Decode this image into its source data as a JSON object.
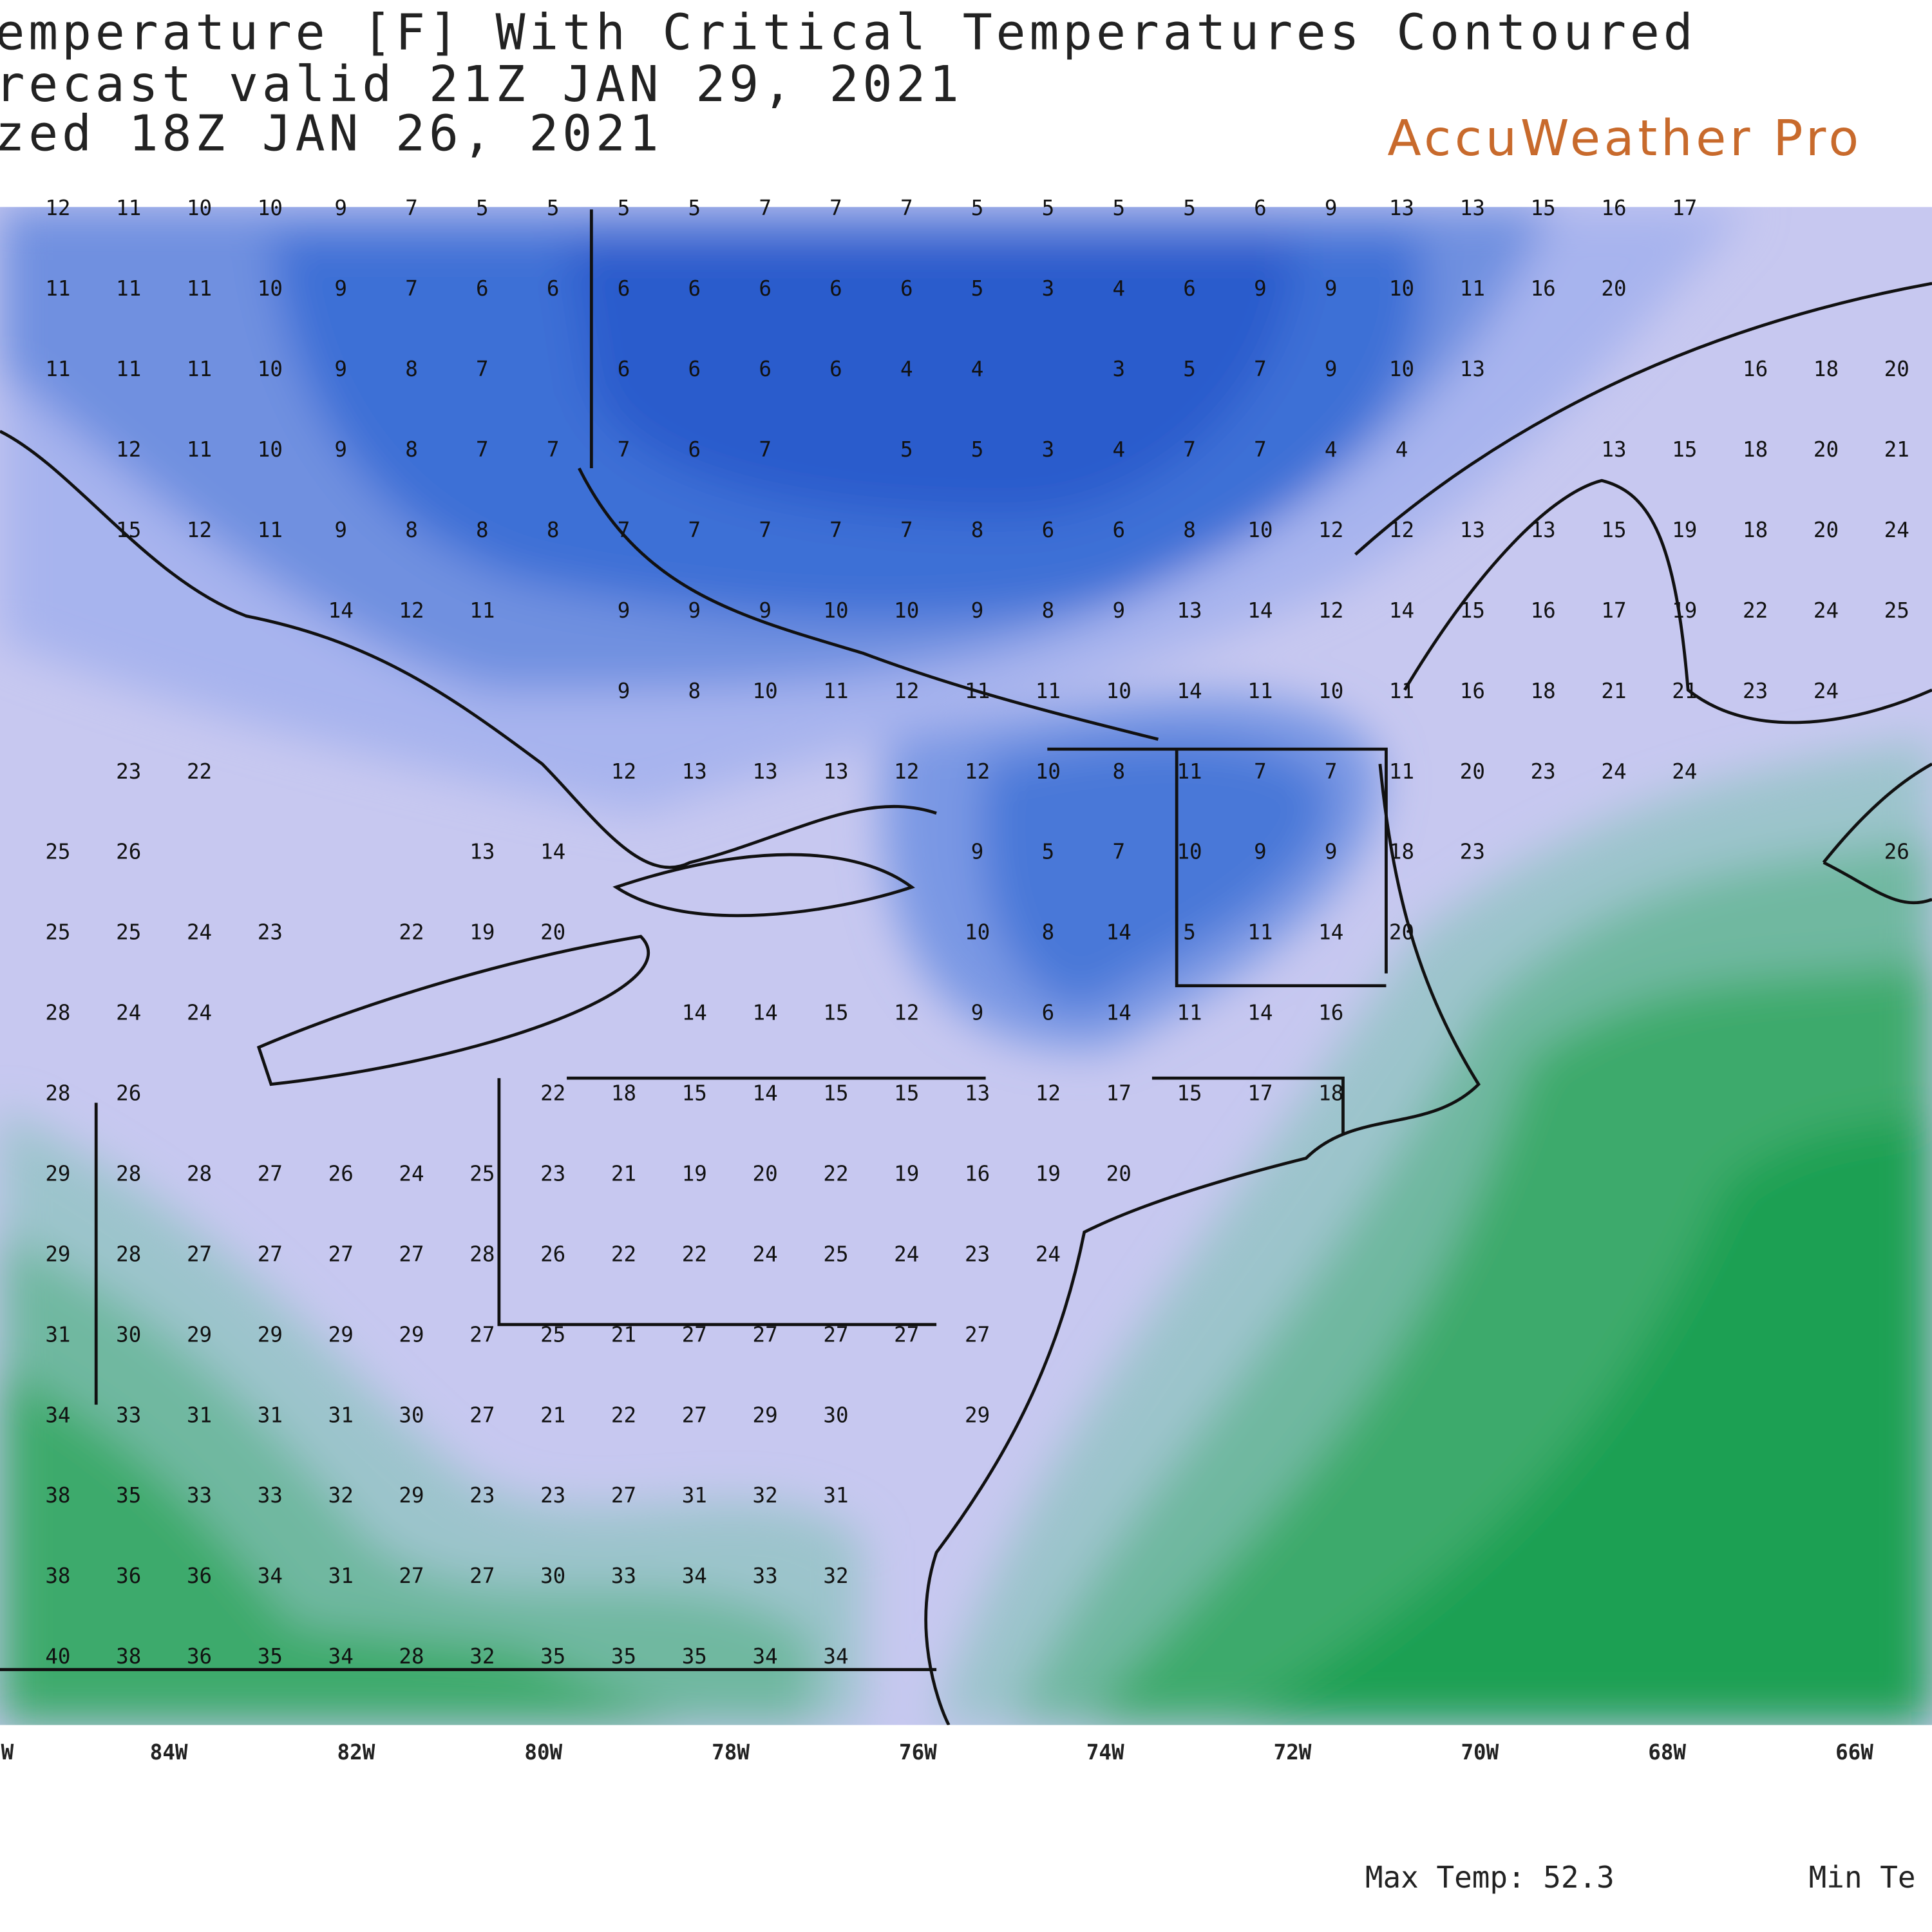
{
  "header": {
    "title_lines": [
      "emperature [F] With Critical Temperatures Contoured",
      "recast valid 21Z JAN 29, 2021",
      "zed 18Z JAN 26, 2021"
    ],
    "brand": "AccuWeather Pro"
  },
  "grid": {
    "rows": [
      [
        12,
        11,
        10,
        10,
        9,
        7,
        5,
        5,
        5,
        5,
        7,
        7,
        7,
        5,
        5,
        5,
        5,
        6,
        9,
        13,
        13,
        15,
        16,
        17,
        null,
        null,
        null
      ],
      [
        11,
        11,
        11,
        10,
        9,
        7,
        6,
        6,
        6,
        6,
        6,
        6,
        6,
        5,
        3,
        4,
        6,
        9,
        9,
        10,
        11,
        16,
        20,
        null,
        null,
        null,
        null
      ],
      [
        11,
        11,
        11,
        10,
        9,
        8,
        7,
        null,
        6,
        6,
        6,
        6,
        4,
        4,
        null,
        3,
        5,
        7,
        9,
        10,
        13,
        null,
        null,
        null,
        16,
        18,
        20
      ],
      [
        null,
        12,
        11,
        10,
        9,
        8,
        7,
        7,
        7,
        6,
        7,
        null,
        5,
        5,
        3,
        4,
        7,
        7,
        4,
        4,
        null,
        null,
        13,
        15,
        18,
        20,
        21
      ],
      [
        null,
        15,
        12,
        11,
        9,
        8,
        8,
        8,
        7,
        7,
        7,
        7,
        7,
        8,
        6,
        6,
        8,
        10,
        12,
        12,
        13,
        13,
        15,
        19,
        18,
        20,
        24
      ],
      [
        null,
        null,
        null,
        null,
        14,
        12,
        11,
        null,
        9,
        9,
        9,
        10,
        10,
        9,
        8,
        9,
        13,
        14,
        12,
        14,
        15,
        16,
        17,
        19,
        22,
        24,
        25
      ],
      [
        null,
        null,
        null,
        null,
        null,
        null,
        null,
        null,
        9,
        8,
        10,
        11,
        12,
        11,
        11,
        10,
        14,
        11,
        10,
        11,
        16,
        18,
        21,
        21,
        23,
        24,
        null
      ],
      [
        null,
        23,
        22,
        null,
        null,
        null,
        null,
        null,
        12,
        13,
        13,
        13,
        12,
        12,
        10,
        8,
        11,
        7,
        7,
        11,
        20,
        23,
        24,
        24,
        null,
        null,
        null
      ],
      [
        25,
        26,
        null,
        null,
        null,
        null,
        13,
        14,
        null,
        null,
        null,
        null,
        null,
        9,
        5,
        7,
        10,
        9,
        9,
        18,
        23,
        null,
        null,
        null,
        null,
        null,
        26
      ],
      [
        25,
        25,
        24,
        23,
        null,
        22,
        19,
        20,
        null,
        null,
        null,
        null,
        null,
        10,
        8,
        14,
        5,
        11,
        14,
        20,
        null,
        null,
        null,
        null,
        null,
        null,
        null
      ],
      [
        28,
        24,
        24,
        null,
        null,
        null,
        null,
        null,
        null,
        14,
        14,
        15,
        12,
        9,
        6,
        14,
        11,
        14,
        16,
        null,
        null,
        null,
        null,
        null,
        null,
        null,
        null
      ],
      [
        28,
        26,
        null,
        null,
        null,
        null,
        null,
        22,
        18,
        15,
        14,
        15,
        15,
        13,
        12,
        17,
        15,
        17,
        18,
        null,
        null,
        null,
        null,
        null,
        null,
        null,
        null
      ],
      [
        29,
        28,
        28,
        27,
        26,
        24,
        25,
        23,
        21,
        19,
        20,
        22,
        19,
        16,
        19,
        20,
        null,
        null,
        null,
        null,
        null,
        null,
        null,
        null,
        null,
        null,
        null
      ],
      [
        29,
        28,
        27,
        27,
        27,
        27,
        28,
        26,
        22,
        22,
        24,
        25,
        24,
        23,
        24,
        null,
        null,
        null,
        null,
        null,
        null,
        null,
        null,
        null,
        null,
        null,
        null
      ],
      [
        31,
        30,
        29,
        29,
        29,
        29,
        27,
        25,
        21,
        27,
        27,
        27,
        27,
        27,
        null,
        null,
        null,
        null,
        null,
        null,
        null,
        null,
        null,
        null,
        null,
        null,
        null
      ],
      [
        34,
        33,
        31,
        31,
        31,
        30,
        27,
        21,
        22,
        27,
        29,
        30,
        null,
        29,
        null,
        null,
        null,
        null,
        null,
        null,
        null,
        null,
        null,
        null,
        null,
        null,
        null
      ],
      [
        38,
        35,
        33,
        33,
        32,
        29,
        23,
        23,
        27,
        31,
        32,
        31,
        null,
        null,
        null,
        null,
        null,
        null,
        null,
        null,
        null,
        null,
        null,
        null,
        null,
        null,
        null
      ],
      [
        38,
        36,
        36,
        34,
        31,
        27,
        27,
        30,
        33,
        34,
        33,
        32,
        null,
        null,
        null,
        null,
        null,
        null,
        null,
        null,
        null,
        null,
        null,
        null,
        null,
        null,
        null
      ],
      [
        40,
        38,
        36,
        35,
        34,
        28,
        32,
        35,
        35,
        35,
        34,
        34,
        null,
        null,
        null,
        null,
        null,
        null,
        null,
        null,
        null,
        null,
        null,
        null,
        null,
        null,
        null
      ]
    ]
  },
  "axis": {
    "labels": [
      "W",
      "84W",
      "82W",
      "80W",
      "78W",
      "76W",
      "74W",
      "72W",
      "70W",
      "68W",
      "66W"
    ]
  },
  "footer": {
    "max": "Max Temp: 52.3",
    "min": "Min Te"
  }
}
